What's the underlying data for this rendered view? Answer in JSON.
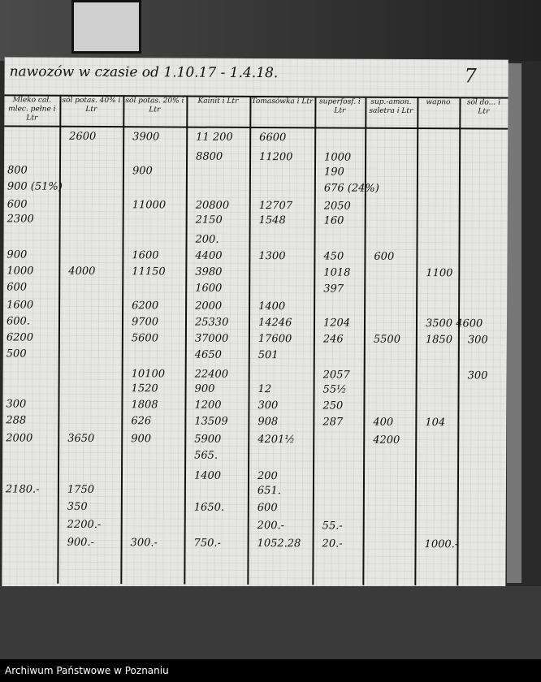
{
  "document": {
    "title": "nawozów w czasie od 1.10.17 - 1.4.18.",
    "page_number": "7",
    "headers": [
      "Mleko cał. mlec. pełne i Ltr",
      "sól potas. 40% i Ltr",
      "sól potas. 20% i Ltr",
      "Kainit i Ltr",
      "Tomasówka i Ltr",
      "superfosf. i Ltr",
      "sup.-amon. saletra i Ltr",
      "wapno",
      "sól do... i Ltr"
    ],
    "rows": [
      [
        "",
        "2600",
        "3900",
        "11 200",
        "6600",
        "",
        "",
        "",
        ""
      ],
      [
        "",
        "",
        "",
        "8800",
        "11200",
        "1000",
        "",
        "",
        ""
      ],
      [
        "800",
        "",
        "900",
        "",
        "",
        "190",
        "",
        "",
        ""
      ],
      [
        "900 (51%)",
        "",
        "",
        "",
        "",
        "676 (24%)",
        "",
        "",
        ""
      ],
      [
        "600",
        "",
        "11000",
        "20800",
        "12707",
        "2050",
        "",
        "",
        ""
      ],
      [
        "2300",
        "",
        "",
        "2150",
        "1548",
        "160",
        "",
        "",
        ""
      ],
      [
        "",
        "",
        "",
        "200.",
        "",
        "",
        "",
        "",
        ""
      ],
      [
        "900",
        "",
        "1600",
        "4400",
        "1300",
        "450",
        "600",
        "",
        ""
      ],
      [
        "1000",
        "4000",
        "11150",
        "3980",
        "",
        "1018",
        "",
        "1100",
        ""
      ],
      [
        "600",
        "",
        "",
        "1600",
        "",
        "397",
        "",
        "",
        ""
      ],
      [
        "1600",
        "",
        "6200",
        "2000",
        "1400",
        "",
        "",
        "",
        ""
      ],
      [
        "600.",
        "",
        "9700",
        "25330",
        "14246",
        "1204",
        "",
        "3500 4600",
        ""
      ],
      [
        "6200",
        "",
        "5600",
        "37000",
        "17600",
        "246",
        "5500",
        "1850",
        "300"
      ],
      [
        "500",
        "",
        "",
        "4650",
        "501",
        "",
        "",
        "",
        ""
      ],
      [
        "",
        "",
        "10100",
        "22400",
        "",
        "2057",
        "",
        "",
        "300"
      ],
      [
        "",
        "",
        "1520",
        "900",
        "12",
        "55½",
        "",
        "",
        ""
      ],
      [
        "300",
        "",
        "1808",
        "1200",
        "300",
        "250",
        "",
        "",
        ""
      ],
      [
        "288",
        "",
        "626",
        "13509",
        "908",
        "287",
        "400",
        "104",
        ""
      ],
      [
        "2000",
        "3650",
        "900",
        "5900",
        "4201½",
        "",
        "4200",
        "",
        ""
      ],
      [
        "",
        "",
        "",
        "565.",
        "",
        "",
        "",
        "",
        ""
      ],
      [
        "",
        "",
        "",
        "1400",
        "200",
        "",
        "",
        "",
        ""
      ],
      [
        "2180.-",
        "1750",
        "",
        "",
        "651.",
        "",
        "",
        "",
        ""
      ],
      [
        "",
        "350",
        "",
        "1650.",
        "600",
        "",
        "",
        "",
        ""
      ],
      [
        "",
        "2200.-",
        "",
        "",
        "200.-",
        "55.-",
        "",
        "",
        ""
      ],
      [
        "",
        "900.-",
        "300.-",
        "750.-",
        "1052.28",
        "20.-",
        "",
        "1000.-",
        ""
      ]
    ]
  },
  "footer": {
    "archive_name": "Archiwum Państwowe w Poznaniu"
  }
}
